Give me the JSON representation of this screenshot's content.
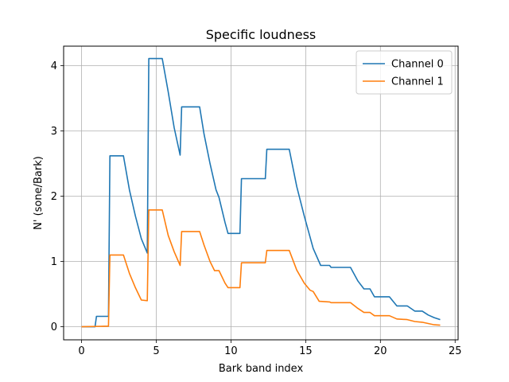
{
  "chart_data": {
    "type": "line",
    "title": "Specific loudness",
    "xlabel": "Bark band index",
    "ylabel": "N' (sone/Bark)",
    "xlim": [
      -1.2,
      25.2
    ],
    "ylim": [
      -0.2,
      4.3
    ],
    "xticks": [
      0,
      5,
      10,
      15,
      20,
      25
    ],
    "yticks": [
      0,
      1,
      2,
      3,
      4
    ],
    "grid": true,
    "legend_position": "top-right",
    "series": [
      {
        "name": "Channel 0",
        "color": "#1f77b4",
        "points": [
          [
            0,
            0
          ],
          [
            0.9,
            0
          ],
          [
            1.0,
            0.16
          ],
          [
            1.8,
            0.16
          ],
          [
            1.9,
            2.62
          ],
          [
            2.8,
            2.62
          ],
          [
            3.2,
            2.1
          ],
          [
            3.6,
            1.7
          ],
          [
            4.0,
            1.35
          ],
          [
            4.4,
            1.13
          ],
          [
            4.5,
            4.11
          ],
          [
            5.4,
            4.11
          ],
          [
            5.8,
            3.6
          ],
          [
            6.2,
            3.05
          ],
          [
            6.6,
            2.63
          ],
          [
            6.7,
            3.37
          ],
          [
            7.9,
            3.37
          ],
          [
            8.2,
            2.95
          ],
          [
            8.6,
            2.5
          ],
          [
            9.0,
            2.1
          ],
          [
            9.2,
            1.98
          ],
          [
            9.6,
            1.6
          ],
          [
            9.8,
            1.43
          ],
          [
            10.6,
            1.43
          ],
          [
            10.7,
            2.27
          ],
          [
            12.3,
            2.27
          ],
          [
            12.4,
            2.72
          ],
          [
            13.9,
            2.72
          ],
          [
            14.4,
            2.15
          ],
          [
            14.9,
            1.7
          ],
          [
            15.5,
            1.2
          ],
          [
            16.0,
            0.94
          ],
          [
            16.6,
            0.94
          ],
          [
            16.7,
            0.91
          ],
          [
            18.0,
            0.91
          ],
          [
            18.5,
            0.7
          ],
          [
            18.9,
            0.58
          ],
          [
            19.3,
            0.58
          ],
          [
            19.6,
            0.46
          ],
          [
            20.6,
            0.46
          ],
          [
            21.1,
            0.32
          ],
          [
            21.8,
            0.32
          ],
          [
            22.3,
            0.24
          ],
          [
            22.8,
            0.24
          ],
          [
            23.2,
            0.18
          ],
          [
            23.6,
            0.14
          ],
          [
            24.0,
            0.11
          ]
        ]
      },
      {
        "name": "Channel 1",
        "color": "#ff7f0e",
        "points": [
          [
            0,
            0
          ],
          [
            1.8,
            0.01
          ],
          [
            1.9,
            1.1
          ],
          [
            2.8,
            1.1
          ],
          [
            3.2,
            0.82
          ],
          [
            3.6,
            0.6
          ],
          [
            4.0,
            0.41
          ],
          [
            4.4,
            0.4
          ],
          [
            4.5,
            1.79
          ],
          [
            5.4,
            1.79
          ],
          [
            5.8,
            1.4
          ],
          [
            6.2,
            1.15
          ],
          [
            6.6,
            0.94
          ],
          [
            6.7,
            1.46
          ],
          [
            7.9,
            1.46
          ],
          [
            8.2,
            1.25
          ],
          [
            8.6,
            1.0
          ],
          [
            8.9,
            0.86
          ],
          [
            9.2,
            0.86
          ],
          [
            9.6,
            0.67
          ],
          [
            9.8,
            0.6
          ],
          [
            10.6,
            0.6
          ],
          [
            10.7,
            0.98
          ],
          [
            12.3,
            0.98
          ],
          [
            12.4,
            1.17
          ],
          [
            13.9,
            1.17
          ],
          [
            14.4,
            0.87
          ],
          [
            14.9,
            0.67
          ],
          [
            15.3,
            0.56
          ],
          [
            15.5,
            0.54
          ],
          [
            15.9,
            0.39
          ],
          [
            16.6,
            0.38
          ],
          [
            16.7,
            0.37
          ],
          [
            18.0,
            0.37
          ],
          [
            18.5,
            0.28
          ],
          [
            18.9,
            0.22
          ],
          [
            19.3,
            0.22
          ],
          [
            19.6,
            0.17
          ],
          [
            20.6,
            0.17
          ],
          [
            21.1,
            0.12
          ],
          [
            21.8,
            0.11
          ],
          [
            22.3,
            0.08
          ],
          [
            22.8,
            0.07
          ],
          [
            23.2,
            0.05
          ],
          [
            23.6,
            0.03
          ],
          [
            24.0,
            0.025
          ]
        ]
      }
    ]
  }
}
